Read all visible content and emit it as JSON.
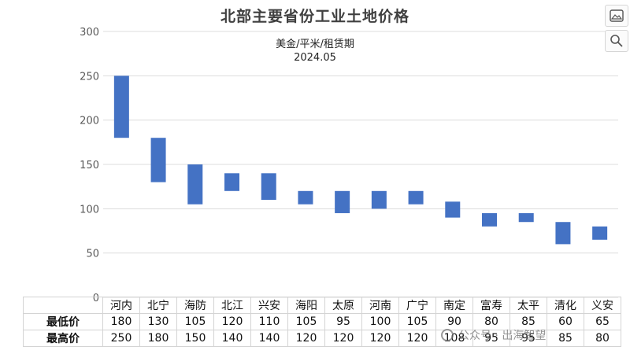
{
  "chart_data": {
    "type": "bar",
    "subtype": "floating-range",
    "title": "北部主要省份工业土地价格",
    "subtitle_lines": [
      "美金/平米/租赁期",
      "2024.05"
    ],
    "categories": [
      "河内",
      "北宁",
      "海防",
      "北江",
      "兴安",
      "海阳",
      "太原",
      "河南",
      "广宁",
      "南定",
      "富寿",
      "太平",
      "清化",
      "义安"
    ],
    "series": [
      {
        "name": "最低价",
        "values": [
          180,
          130,
          105,
          120,
          110,
          105,
          95,
          100,
          105,
          90,
          80,
          85,
          60,
          65
        ]
      },
      {
        "name": "最高价",
        "values": [
          250,
          180,
          150,
          140,
          140,
          120,
          120,
          120,
          120,
          108,
          95,
          95,
          85,
          80
        ]
      }
    ],
    "ylim": [
      0,
      300
    ],
    "yticks": [
      0,
      50,
      100,
      150,
      200,
      250,
      300
    ],
    "bar_color": "#4472C4",
    "grid": true,
    "legend": "data-table-below"
  },
  "toolbar": {
    "buttons": [
      {
        "name": "image-icon"
      },
      {
        "name": "search-icon"
      }
    ]
  },
  "watermark": {
    "text": "公众号 · 出海智望"
  }
}
